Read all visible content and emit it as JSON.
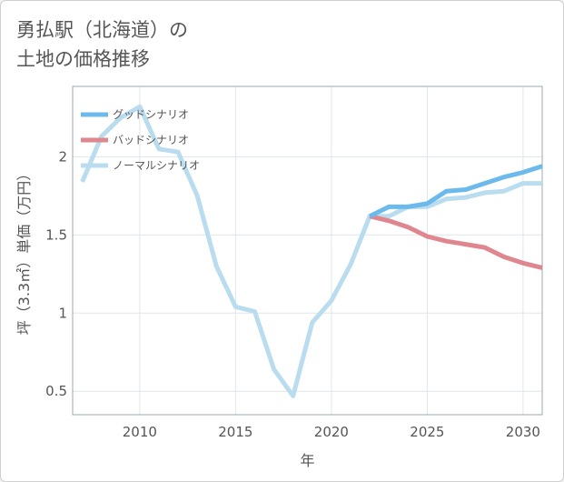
{
  "title_lines": [
    "勇払駅（北海道）の",
    "土地の価格推移"
  ],
  "chart_data": {
    "type": "line",
    "xlabel": "年",
    "ylabel": "坪（3.3㎡）単価（万円）",
    "xlim": [
      2006.5,
      2031
    ],
    "ylim": [
      0.35,
      2.45
    ],
    "x_ticks": [
      2010,
      2015,
      2020,
      2025,
      2030
    ],
    "x_tick_labels": [
      "2010",
      "2015",
      "2020",
      "2025",
      "2030"
    ],
    "y_ticks": [
      0.5,
      1,
      1.5,
      2
    ],
    "y_tick_labels": [
      "0.5",
      "1",
      "1.5",
      "2"
    ],
    "grid": true,
    "legend_position": "top-left",
    "series": [
      {
        "name": "グッドシナリオ",
        "color": "#6cb9ec",
        "x": [
          2022,
          2023,
          2024,
          2025,
          2026,
          2027,
          2028,
          2029,
          2030,
          2031
        ],
        "y": [
          1.62,
          1.68,
          1.68,
          1.7,
          1.78,
          1.79,
          1.83,
          1.87,
          1.9,
          1.94
        ]
      },
      {
        "name": "バッドシナリオ",
        "color": "#e0868e",
        "x": [
          2022,
          2023,
          2024,
          2025,
          2026,
          2027,
          2028,
          2029,
          2030,
          2031
        ],
        "y": [
          1.62,
          1.59,
          1.55,
          1.49,
          1.46,
          1.44,
          1.42,
          1.36,
          1.32,
          1.29
        ]
      },
      {
        "name": "ノーマルシナリオ",
        "color": "#b9dcee",
        "x": [
          2007,
          2008,
          2009,
          2010,
          2011,
          2012,
          2013,
          2014,
          2015,
          2016,
          2017,
          2018,
          2019,
          2020,
          2021,
          2022,
          2023,
          2024,
          2025,
          2026,
          2027,
          2028,
          2029,
          2030,
          2031
        ],
        "y": [
          1.84,
          2.13,
          2.25,
          2.32,
          2.05,
          2.03,
          1.75,
          1.3,
          1.04,
          1.01,
          0.64,
          0.47,
          0.94,
          1.08,
          1.31,
          1.62,
          1.62,
          1.68,
          1.68,
          1.73,
          1.74,
          1.77,
          1.78,
          1.83,
          1.83
        ]
      }
    ]
  }
}
